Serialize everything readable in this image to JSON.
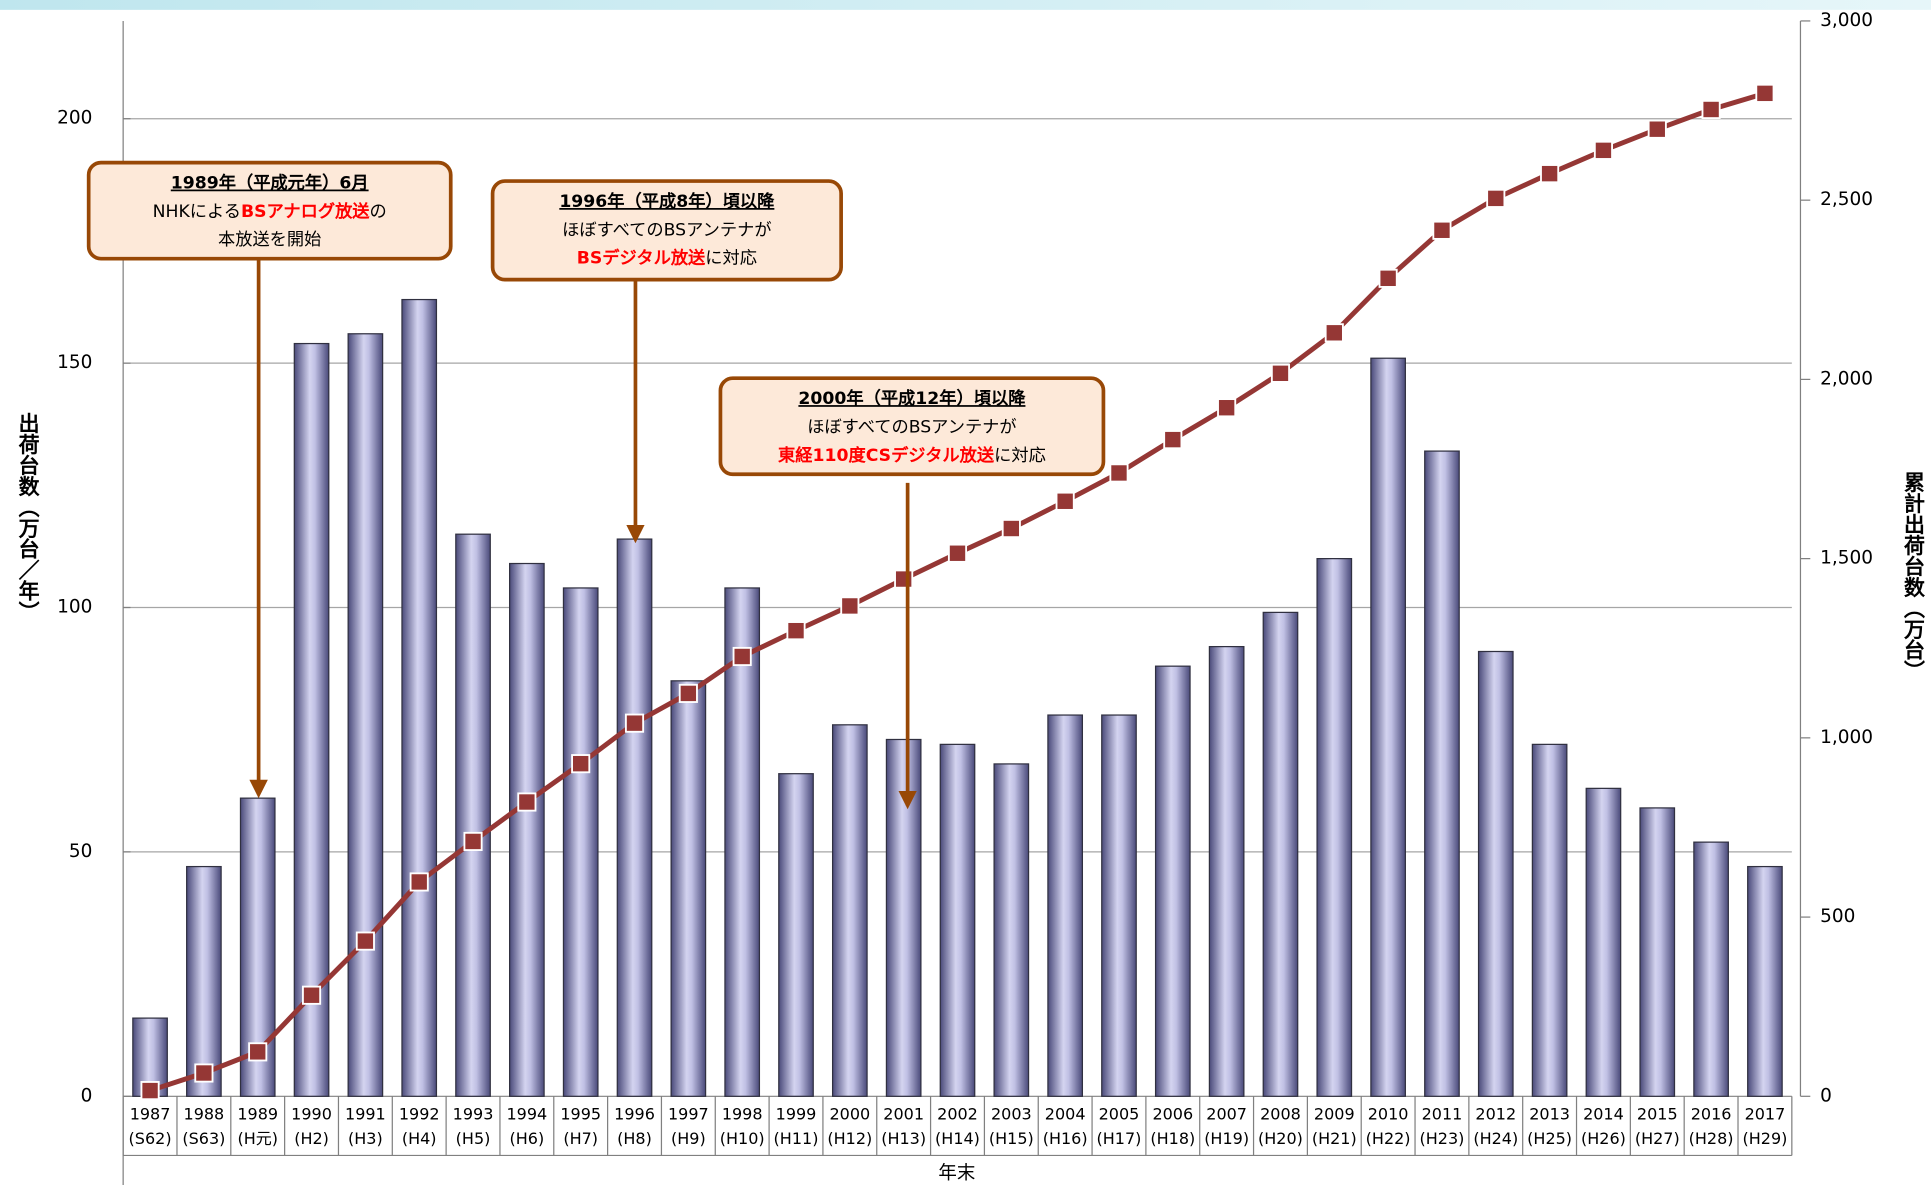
{
  "chart_data": {
    "type": "bar",
    "categories": [
      [
        "1987",
        "(S62)"
      ],
      [
        "1988",
        "(S63)"
      ],
      [
        "1989",
        "(H元)"
      ],
      [
        "1990",
        "(H2)"
      ],
      [
        "1991",
        "(H3)"
      ],
      [
        "1992",
        "(H4)"
      ],
      [
        "1993",
        "(H5)"
      ],
      [
        "1994",
        "(H6)"
      ],
      [
        "1995",
        "(H7)"
      ],
      [
        "1996",
        "(H8)"
      ],
      [
        "1997",
        "(H9)"
      ],
      [
        "1998",
        "(H10)"
      ],
      [
        "1999",
        "(H11)"
      ],
      [
        "2000",
        "(H12)"
      ],
      [
        "2001",
        "(H13)"
      ],
      [
        "2002",
        "(H14)"
      ],
      [
        "2003",
        "(H15)"
      ],
      [
        "2004",
        "(H16)"
      ],
      [
        "2005",
        "(H17)"
      ],
      [
        "2006",
        "(H18)"
      ],
      [
        "2007",
        "(H19)"
      ],
      [
        "2008",
        "(H20)"
      ],
      [
        "2009",
        "(H21)"
      ],
      [
        "2010",
        "(H22)"
      ],
      [
        "2011",
        "(H23)"
      ],
      [
        "2012",
        "(H24)"
      ],
      [
        "2013",
        "(H25)"
      ],
      [
        "2014",
        "(H26)"
      ],
      [
        "2015",
        "(H27)"
      ],
      [
        "2016",
        "(H28)"
      ],
      [
        "2017",
        "(H29)"
      ]
    ],
    "series": [
      {
        "type": "bar",
        "color": "#8585b8",
        "values": [
          16,
          47,
          61,
          154,
          156,
          163,
          115,
          109,
          104,
          114,
          85,
          104,
          66,
          76,
          73,
          72,
          68,
          78,
          78,
          88,
          92,
          99,
          110,
          151,
          132,
          91,
          72,
          63,
          59,
          52,
          47
        ]
      },
      {
        "type": "line",
        "axis": "y2",
        "color": "#953735",
        "values": [
          16,
          65,
          124,
          282,
          433,
          598,
          711,
          821,
          928,
          1041,
          1124,
          1227,
          1299,
          1368,
          1443,
          1515,
          1584,
          1660,
          1739,
          1832,
          1921,
          2017,
          2130,
          2282,
          2416,
          2505,
          2574,
          2639,
          2698,
          2753,
          2798
        ]
      }
    ],
    "ylim": [
      0,
      220
    ],
    "yticks": [
      0,
      50,
      100,
      150,
      200
    ],
    "y2lim": [
      0,
      3000
    ],
    "y2ticks": [
      0,
      500,
      {
        "value": 1000,
        "label": "1,000"
      },
      {
        "value": 1500,
        "label": "1,500"
      },
      {
        "value": 2000,
        "label": "2,000"
      },
      {
        "value": 2500,
        "label": "2,500"
      },
      {
        "value": 3000,
        "label": "3,000"
      }
    ],
    "grid": true,
    "ylabel": "出荷台数（万台／年）",
    "y2label": "累計出荷台数（万台）",
    "xlabel": "年末",
    "annotations": [
      {
        "title": "1989年（平成元年）6月",
        "lines": [
          [
            {
              "text": "NHKによる"
            },
            {
              "text": "BSアナログ放送",
              "color": "#ff0000"
            },
            {
              "text": "の"
            }
          ],
          [
            {
              "text": "本放送を開始"
            }
          ]
        ]
      },
      {
        "title": "1996年（平成8年）頃以降",
        "lines": [
          [
            {
              "text": "ほぼすべてのBSアンテナが"
            }
          ],
          [
            {
              "text": "BSデジタル放送",
              "color": "#ff0000"
            },
            {
              "text": "に対応"
            }
          ]
        ]
      },
      {
        "title": "2000年（平成12年）頃以降",
        "lines": [
          [
            {
              "text": "ほぼすべてのBSアンテナが"
            }
          ],
          [
            {
              "text": "東経110度CSデジタル放送",
              "color": "#ff0000"
            },
            {
              "text": "に対応"
            }
          ]
        ]
      }
    ]
  }
}
